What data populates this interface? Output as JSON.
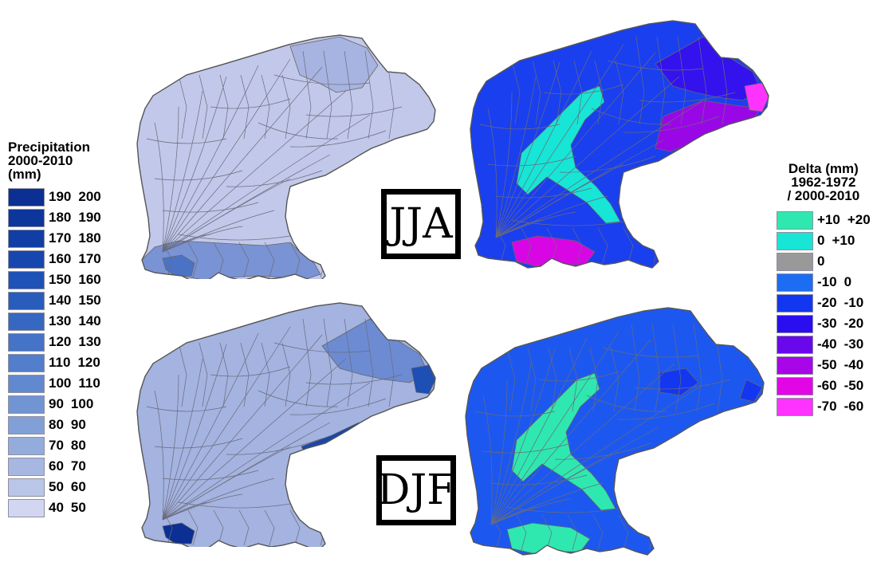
{
  "precip_legend": {
    "title": "Precipitation\n2000-2010\n(mm)",
    "classes": [
      {
        "lo": "190",
        "hi": "200",
        "color": "#0b2f93"
      },
      {
        "lo": "180",
        "hi": "190",
        "color": "#0d369c"
      },
      {
        "lo": "170",
        "hi": "180",
        "color": "#113ea5"
      },
      {
        "lo": "160",
        "hi": "170",
        "color": "#1647ae"
      },
      {
        "lo": "150",
        "hi": "160",
        "color": "#1f52b6"
      },
      {
        "lo": "140",
        "hi": "150",
        "color": "#295dbc"
      },
      {
        "lo": "130",
        "hi": "140",
        "color": "#3668c2"
      },
      {
        "lo": "120",
        "hi": "130",
        "color": "#4473c7"
      },
      {
        "lo": "110",
        "hi": "120",
        "color": "#527ecb"
      },
      {
        "lo": "100",
        "hi": "110",
        "color": "#6189cf"
      },
      {
        "lo": "90",
        "hi": "100",
        "color": "#7194d3"
      },
      {
        "lo": "80",
        "hi": "90",
        "color": "#81a0d7"
      },
      {
        "lo": "70",
        "hi": "80",
        "color": "#93acdc"
      },
      {
        "lo": "60",
        "hi": "70",
        "color": "#a6b8e1"
      },
      {
        "lo": "50",
        "hi": "60",
        "color": "#bac6e7"
      },
      {
        "lo": "40",
        "hi": "50",
        "color": "#d2d6f0"
      }
    ]
  },
  "delta_legend": {
    "title": "Delta (mm)\n1962-1972\n/ 2000-2010",
    "classes": [
      {
        "lo": "+10",
        "hi": "+20",
        "color": "#2ee8b0"
      },
      {
        "lo": "0",
        "hi": "+10",
        "color": "#17e5d6"
      },
      {
        "lo": "0",
        "hi": "",
        "color": "#999999"
      },
      {
        "lo": "-10",
        "hi": "0",
        "color": "#1c6df2"
      },
      {
        "lo": "-20",
        "hi": "-10",
        "color": "#1337f0"
      },
      {
        "lo": "-30",
        "hi": "-20",
        "color": "#2a0ef0"
      },
      {
        "lo": "-40",
        "hi": "-30",
        "color": "#6a08ec"
      },
      {
        "lo": "-50",
        "hi": "-40",
        "color": "#a805e8"
      },
      {
        "lo": "-60",
        "hi": "-50",
        "color": "#e205e6"
      },
      {
        "lo": "-70",
        "hi": "-60",
        "color": "#ff33ff"
      }
    ]
  },
  "seasons": {
    "summer": "JJA",
    "winter": "DJF"
  },
  "maps": {
    "jja_precip": {
      "base": "#c2c8ea",
      "hot": [
        {
          "region": "north-center",
          "color": "#a7b3e0"
        },
        {
          "region": "southern-edge",
          "color": "#7a93d4"
        },
        {
          "region": "south-pocket",
          "color": "#4a73c6"
        }
      ]
    },
    "djf_precip": {
      "base": "#a4b3e0",
      "hot": [
        {
          "region": "north-east",
          "color": "#6d8bd2"
        },
        {
          "region": "east-tip",
          "color": "#1d4fb4"
        },
        {
          "region": "south-east",
          "color": "#1a46aa"
        },
        {
          "region": "south-pocket",
          "color": "#0b2f93"
        }
      ]
    },
    "jja_delta": {
      "base": "#1a3fef",
      "hot": [
        {
          "region": "north-east",
          "color": "#3412ee"
        },
        {
          "region": "east",
          "color": "#9a07e6"
        },
        {
          "region": "east-tip",
          "color": "#ff33ff"
        },
        {
          "region": "central-valley",
          "color": "#17e5d6"
        },
        {
          "region": "south",
          "color": "#d806e4"
        }
      ]
    },
    "djf_delta": {
      "base": "#1c58f0",
      "hot": [
        {
          "region": "central-valley",
          "color": "#2ee8b0"
        },
        {
          "region": "south",
          "color": "#2ee8b0"
        },
        {
          "region": "east-patches",
          "color": "#1337f0"
        }
      ]
    }
  }
}
